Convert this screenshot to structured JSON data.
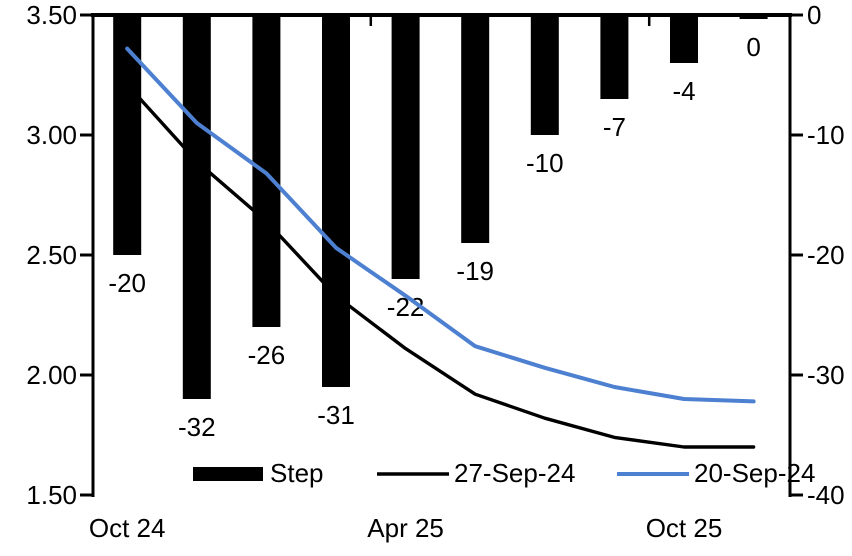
{
  "chart_data": {
    "type": "combo",
    "title": "",
    "background": "#ffffff",
    "n_categories": 10,
    "x_axis": {
      "tick_labels": [
        {
          "label": "Oct 24",
          "category_index": 0
        },
        {
          "label": "Apr 25",
          "category_index": 4
        },
        {
          "label": "Oct 25",
          "category_index": 8
        }
      ]
    },
    "left_axis": {
      "min": 1.5,
      "max": 3.5,
      "tick_labels": [
        "3.50",
        "3.00",
        "2.50",
        "2.00",
        "1.50"
      ]
    },
    "right_axis": {
      "min": -40,
      "max": 0,
      "tick_labels": [
        "0",
        "-10",
        "-20",
        "-30",
        "-40"
      ]
    },
    "series": [
      {
        "name": "Step",
        "type": "bar",
        "axis": "right",
        "color": "#000000",
        "values": [
          -20,
          -32,
          -26,
          -31,
          -22,
          -19,
          -10,
          -7,
          -4,
          0
        ],
        "data_labels": [
          "-20",
          "-32",
          "-26",
          "-31",
          "-22",
          "-19",
          "-10",
          "-7",
          "-4",
          "0"
        ]
      },
      {
        "name": "27-Sep-24",
        "type": "line",
        "axis": "left",
        "color": "#000000",
        "values": [
          3.21,
          2.89,
          2.64,
          2.33,
          2.11,
          1.92,
          1.82,
          1.74,
          1.7,
          1.7
        ]
      },
      {
        "name": "20-Sep-24",
        "type": "line",
        "axis": "left",
        "color": "#4d80d0",
        "values": [
          3.36,
          3.05,
          2.84,
          2.53,
          2.33,
          2.12,
          2.03,
          1.95,
          1.9,
          1.89
        ]
      }
    ],
    "legend": {
      "position": "bottom-inside",
      "entries": [
        "Step",
        "27-Sep-24",
        "20-Sep-24"
      ]
    },
    "grid": false
  }
}
